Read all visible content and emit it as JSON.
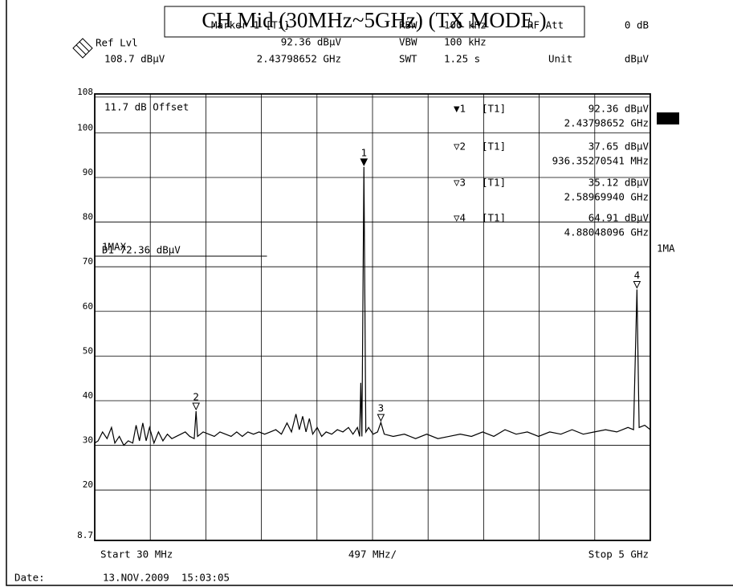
{
  "chart_data": {
    "type": "line",
    "title": "CH Mid (30MHz~5GHz) (TX MODE )",
    "header": {
      "marker": "Marker 1 [T1]",
      "marker_level": "92.36 dBµV",
      "marker_freq": "2.43798652 GHz",
      "ref_lvl": "Ref Lvl",
      "ref_value": "108.7 dBµV",
      "rbw": "RBW",
      "rbw_value": "100 kHz",
      "vbw": "VBW",
      "vbw_value": "100 kHz",
      "swt": "SWT",
      "swt_value": "1.25 s",
      "rf_att": "RF Att",
      "rf_att_value": "0 dB",
      "unit": "Unit",
      "unit_value": "dBµV"
    },
    "offset": "11.7 dB Offset",
    "trace_label": "1MAX",
    "side_label": "1MA",
    "display_line": {
      "value": 72.36,
      "label": "D1 72.36 dBµV"
    },
    "marker_table": [
      [
        "▼1",
        "[T1]",
        "92.36 dBµV",
        "2.43798652 GHz"
      ],
      [
        "▽2",
        "[T1]",
        "37.65 dBµV",
        "936.35270541 MHz"
      ],
      [
        "▽3",
        "[T1]",
        "35.12 dBµV",
        "2.58969940 GHz"
      ],
      [
        "▽4",
        "[T1]",
        "64.91 dBµV",
        "4.88048096 GHz"
      ]
    ],
    "markers": [
      {
        "label": "1",
        "x": 2437.98652,
        "y": 92.36
      },
      {
        "label": "2",
        "x": 936.35270541,
        "y": 37.65
      },
      {
        "label": "3",
        "x": 2589.6994,
        "y": 35.12
      },
      {
        "label": "4",
        "x": 4880.48096,
        "y": 64.91
      }
    ],
    "x_start": "Start 30 MHz",
    "x_span": "497 MHz/",
    "x_stop": "Stop 5 GHz",
    "date_label": "Date:",
    "date": "13.NOV.2009  15:03:05",
    "xlim": [
      30,
      5000
    ],
    "ylim": [
      8.7,
      108.7
    ],
    "yticks": [
      8.7,
      20,
      30,
      40,
      50,
      60,
      70,
      80,
      90,
      100,
      108
    ],
    "grid": true,
    "series": [
      {
        "color": "#000000",
        "x": [
          30,
          60,
          100,
          140,
          180,
          210,
          250,
          290,
          330,
          370,
          400,
          430,
          460,
          490,
          520,
          560,
          600,
          640,
          680,
          720,
          760,
          800,
          840,
          880,
          920,
          936.35,
          950,
          1000,
          1050,
          1100,
          1150,
          1200,
          1250,
          1300,
          1350,
          1400,
          1450,
          1500,
          1550,
          1600,
          1650,
          1700,
          1750,
          1790,
          1830,
          1860,
          1890,
          1920,
          1950,
          1980,
          2020,
          2060,
          2100,
          2150,
          2200,
          2250,
          2300,
          2340,
          2380,
          2400,
          2410,
          2420,
          2437.98652,
          2455,
          2480,
          2520,
          2560,
          2589.6994,
          2620,
          2700,
          2800,
          2900,
          3000,
          3100,
          3200,
          3300,
          3400,
          3500,
          3600,
          3700,
          3800,
          3900,
          4000,
          4100,
          4200,
          4300,
          4400,
          4500,
          4600,
          4700,
          4800,
          4850,
          4880.48096,
          4900,
          4950,
          5000
        ],
        "values": [
          30.5,
          31,
          33,
          31.5,
          34,
          30.5,
          32,
          30,
          31,
          30.5,
          34.5,
          31,
          35,
          31,
          34,
          30.5,
          33,
          31,
          32.5,
          31.5,
          32,
          32.5,
          33,
          32,
          31.5,
          37.65,
          32,
          33,
          32.5,
          32,
          33,
          32.5,
          32,
          33,
          32,
          33,
          32.5,
          33,
          32.5,
          33,
          33.5,
          32.5,
          35,
          33,
          37,
          33.5,
          36.5,
          33,
          36,
          32.5,
          34,
          32,
          33,
          32.5,
          33.5,
          33,
          34,
          32.5,
          34,
          32,
          44,
          32,
          92.36,
          33,
          34,
          32.5,
          33,
          35.12,
          32.5,
          32,
          32.5,
          31.5,
          32.5,
          31.5,
          32,
          32.5,
          32,
          33,
          32,
          33.5,
          32.5,
          33,
          32,
          33,
          32.5,
          33.5,
          32.5,
          33,
          33.5,
          33,
          34,
          33.5,
          64.91,
          34,
          34.5,
          33.5
        ]
      }
    ]
  }
}
